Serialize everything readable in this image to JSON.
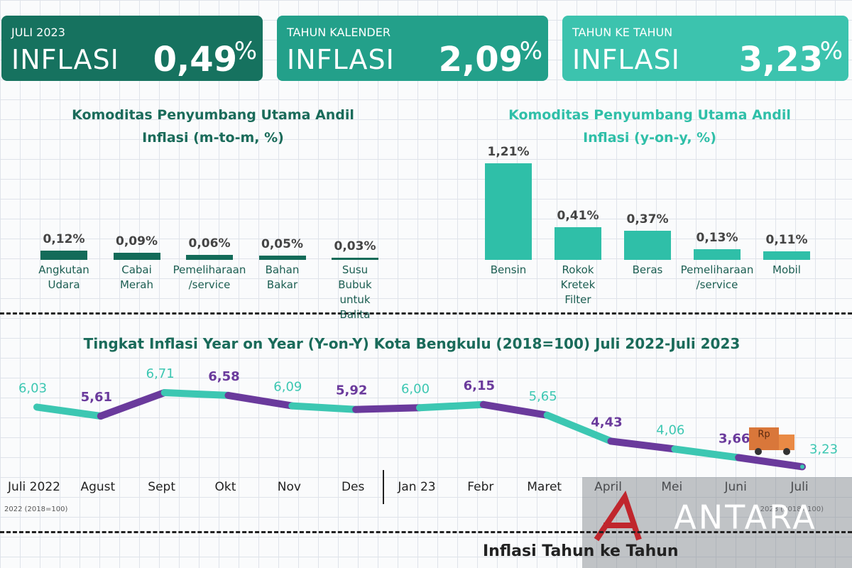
{
  "cards": [
    {
      "label": "JULI 2023",
      "title": "INFLASI",
      "value": "0,49",
      "unit": "%"
    },
    {
      "label": "TAHUN KALENDER",
      "title": "INFLASI",
      "value": "2,09",
      "unit": "%"
    },
    {
      "label": "TAHUN KE TAHUN",
      "title": "INFLASI",
      "value": "3,23",
      "unit": "%"
    }
  ],
  "chart_data": [
    {
      "type": "bar",
      "title": "Komoditas Penyumbang Utama Andil Inflasi (m-to-m, %)",
      "categories": [
        "Angkutan Udara",
        "Cabai Merah",
        "Pemeliharaan /service",
        "Bahan Bakar",
        "Susu Bubuk untuk Balita"
      ],
      "values": [
        0.12,
        0.09,
        0.06,
        0.05,
        0.03
      ],
      "value_labels": [
        "0,12%",
        "0,09%",
        "0,06%",
        "0,05%",
        "0,03%"
      ],
      "color": "#136b59"
    },
    {
      "type": "bar",
      "title": "Komoditas Penyumbang Utama Andil Inflasi (y-on-y, %)",
      "categories": [
        "Bensin",
        "Rokok Kretek Filter",
        "Beras",
        "Pemeliharaan /service",
        "Mobil"
      ],
      "values": [
        1.21,
        0.41,
        0.37,
        0.13,
        0.11
      ],
      "value_labels": [
        "1,21%",
        "0,41%",
        "0,37%",
        "0,13%",
        "0,11%"
      ],
      "color": "#2fbfa8"
    },
    {
      "type": "line",
      "title": "Tingkat Inflasi Year on Year (Y-on-Y) Kota Bengkulu (2018=100) Juli 2022-Juli 2023",
      "categories": [
        "Juli 2022",
        "Agust",
        "Sept",
        "Okt",
        "Nov",
        "Des",
        "Jan 23",
        "Febr",
        "Maret",
        "April",
        "Mei",
        "Juni",
        "Juli"
      ],
      "values": [
        6.03,
        5.61,
        6.71,
        6.58,
        6.09,
        5.92,
        6.0,
        6.15,
        5.65,
        4.43,
        4.06,
        3.66,
        3.23
      ],
      "value_labels": [
        "6,03",
        "5,61",
        "6,71",
        "6,58",
        "6,09",
        "5,92",
        "6,00",
        "6,15",
        "5,65",
        "4,43",
        "4,06",
        "3,66",
        "3,23"
      ],
      "colors": [
        "#3cc7b2",
        "#6a3a9c"
      ],
      "notes": [
        "2022 (2018=100)",
        "2023 (2018=100)"
      ]
    }
  ],
  "truck_label": "Rp",
  "footer_title": "Inflasi Tahun ke Tahun",
  "watermark": "ANTARA"
}
